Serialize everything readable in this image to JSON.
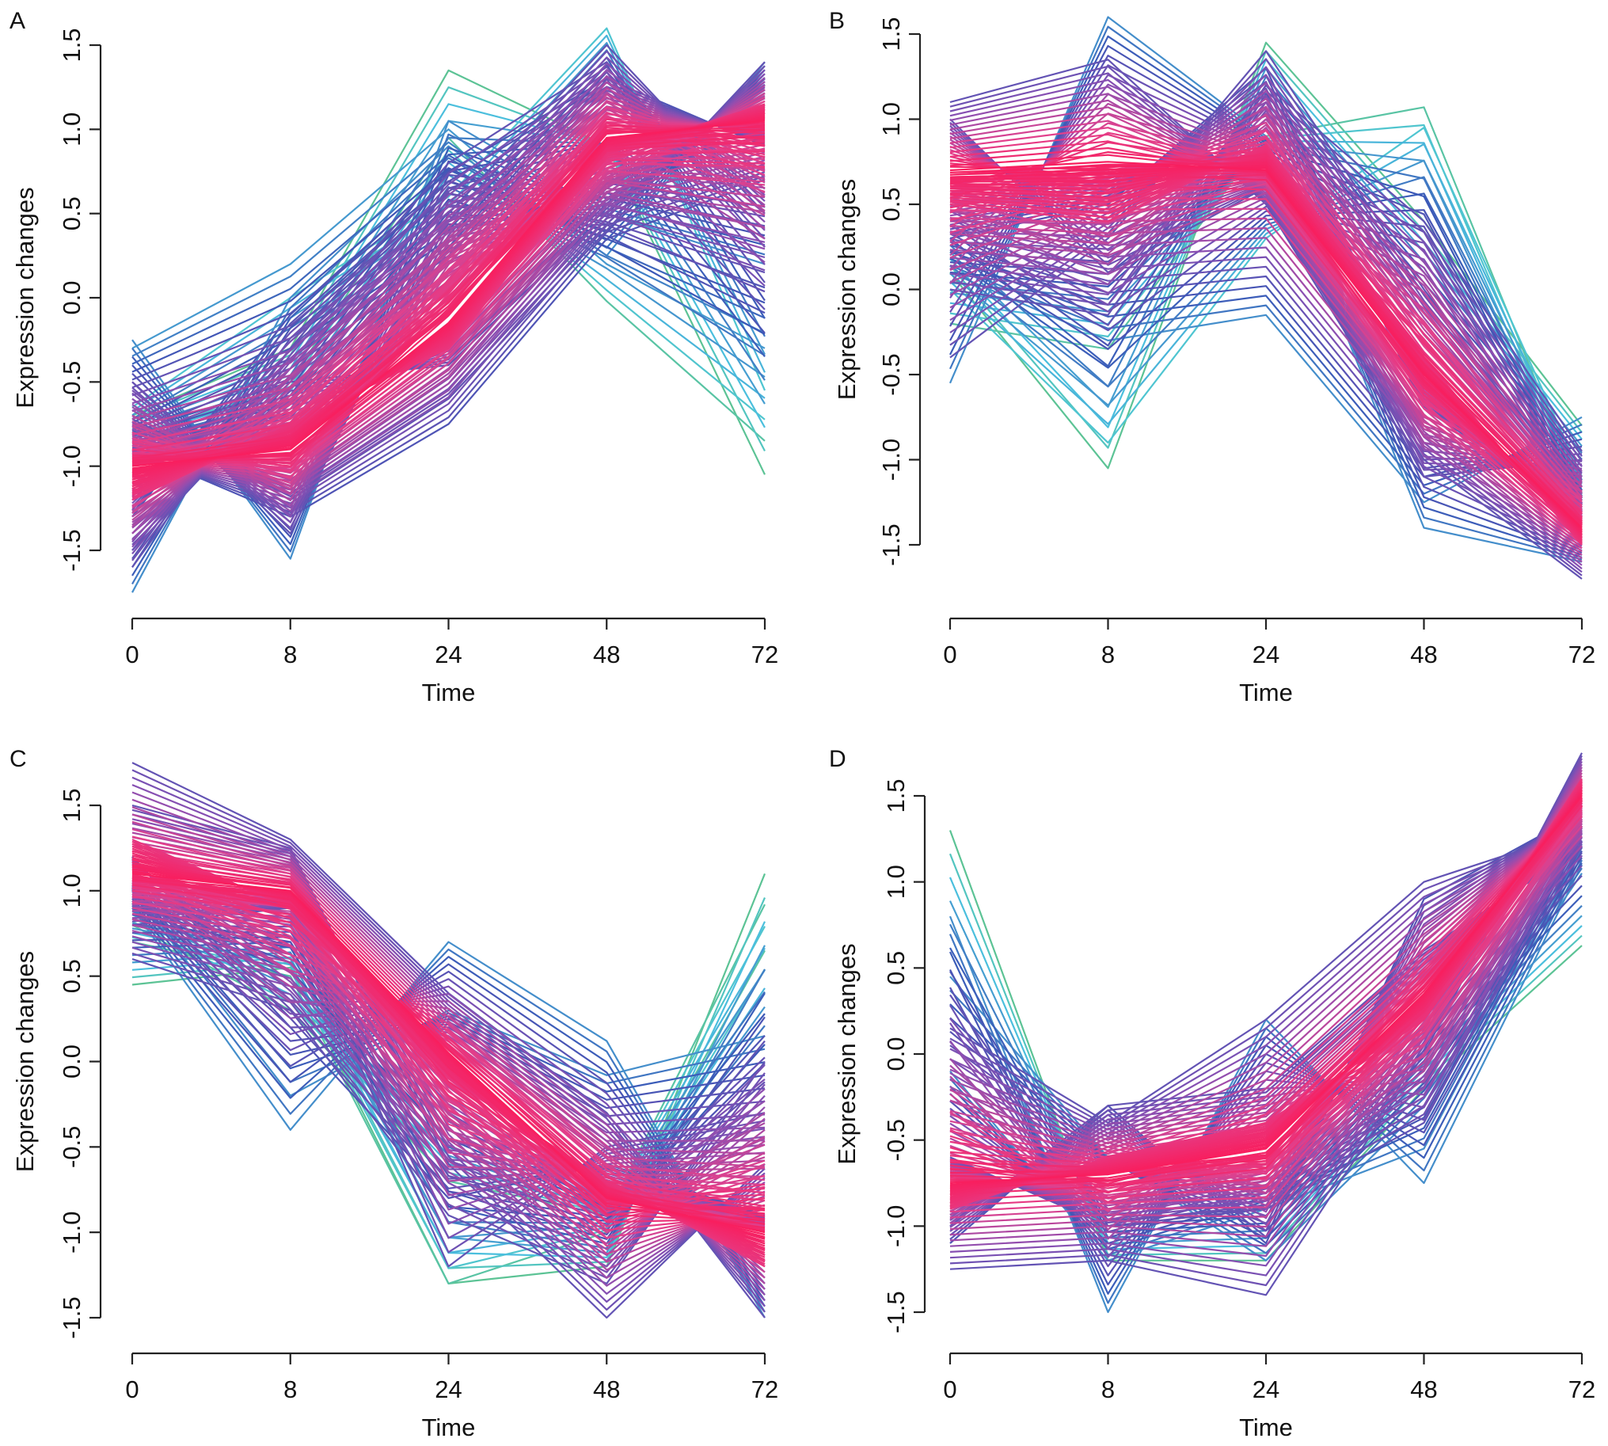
{
  "chart_data": [
    {
      "panel_label": "A",
      "type": "line",
      "xlabel": "Time",
      "ylabel": "Expression changes",
      "x_ticks": [
        "0",
        "8",
        "24",
        "48",
        "72"
      ],
      "y_ticks": [
        "-1.5",
        "-1.0",
        "-0.5",
        "0.0",
        "0.5",
        "1.0",
        "1.5"
      ],
      "ylim": [
        -1.5,
        1.5
      ],
      "x_spacing": "categorical-equal",
      "grid": false,
      "series": [
        {
          "membership": 0.95,
          "values": [
            -1.0,
            -0.9,
            -0.15,
            0.95,
            1.05
          ]
        },
        {
          "membership": 0.85,
          "values": [
            -1.2,
            -0.75,
            -0.3,
            0.85,
            1.15
          ]
        },
        {
          "membership": 0.5,
          "values": [
            -0.5,
            -1.4,
            0.5,
            1.5,
            0.5
          ]
        },
        {
          "membership": 0.5,
          "values": [
            -1.6,
            -0.3,
            0.8,
            1.4,
            0.3
          ]
        },
        {
          "membership": 0.5,
          "values": [
            -0.7,
            -1.2,
            -0.6,
            0.4,
            1.4
          ]
        },
        {
          "membership": 0.5,
          "values": [
            -1.5,
            -0.5,
            -0.4,
            0.5,
            1.3
          ]
        },
        {
          "membership": 0.45,
          "values": [
            -1.3,
            -0.1,
            0.75,
            1.3,
            0.9
          ]
        },
        {
          "membership": 0.45,
          "values": [
            -0.9,
            -1.3,
            -0.75,
            0.35,
            0.7
          ]
        },
        {
          "membership": 0.3,
          "values": [
            -0.25,
            -1.55,
            1.05,
            0.5,
            0.2
          ]
        },
        {
          "membership": 0.3,
          "values": [
            -1.75,
            0.0,
            0.9,
            0.25,
            1.4
          ]
        },
        {
          "membership": 0.28,
          "values": [
            -0.3,
            0.2,
            1.0,
            0.2,
            -0.3
          ]
        },
        {
          "membership": 0.18,
          "values": [
            -0.65,
            0.0,
            0.6,
            1.6,
            -0.55
          ]
        },
        {
          "membership": 0.1,
          "values": [
            -0.7,
            -0.3,
            1.35,
            0.9,
            -1.05
          ]
        },
        {
          "membership": 0.12,
          "values": [
            -0.8,
            -0.5,
            0.95,
            -0.02,
            -0.85
          ]
        }
      ]
    },
    {
      "panel_label": "B",
      "type": "line",
      "xlabel": "Time",
      "ylabel": "Expression changes",
      "x_ticks": [
        "0",
        "8",
        "24",
        "48",
        "72"
      ],
      "y_ticks": [
        "-1.5",
        "-1.0",
        "-0.5",
        "0.0",
        "0.5",
        "1.0",
        "1.5"
      ],
      "ylim": [
        -1.5,
        1.5
      ],
      "x_spacing": "categorical-equal",
      "grid": false,
      "series": [
        {
          "membership": 0.95,
          "values": [
            0.7,
            0.75,
            0.7,
            -0.5,
            -1.4
          ]
        },
        {
          "membership": 0.85,
          "values": [
            0.5,
            0.4,
            0.85,
            -0.4,
            -1.5
          ]
        },
        {
          "membership": 0.5,
          "values": [
            1.1,
            1.35,
            0.5,
            -1.0,
            -1.7
          ]
        },
        {
          "membership": 0.5,
          "values": [
            -0.4,
            0.3,
            1.4,
            0.0,
            -1.2
          ]
        },
        {
          "membership": 0.5,
          "values": [
            0.0,
            -0.15,
            1.2,
            0.4,
            -0.95
          ]
        },
        {
          "membership": 0.5,
          "values": [
            1.0,
            0.1,
            0.6,
            -1.1,
            -1.0
          ]
        },
        {
          "membership": 0.45,
          "values": [
            0.3,
            0.5,
            1.3,
            -0.7,
            -1.3
          ]
        },
        {
          "membership": 0.3,
          "values": [
            -0.55,
            1.6,
            0.9,
            -1.4,
            -1.6
          ]
        },
        {
          "membership": 0.3,
          "values": [
            0.1,
            -0.3,
            -0.15,
            -1.25,
            -0.75
          ]
        },
        {
          "membership": 0.18,
          "values": [
            0.0,
            -0.9,
            0.3,
            0.95,
            -1.1
          ]
        },
        {
          "membership": 0.1,
          "values": [
            0.1,
            -1.05,
            1.45,
            0.4,
            -0.8
          ]
        },
        {
          "membership": 0.12,
          "values": [
            -0.2,
            -0.35,
            0.9,
            1.07,
            -1.2
          ]
        }
      ]
    },
    {
      "panel_label": "C",
      "type": "line",
      "xlabel": "Time",
      "ylabel": "Expression changes",
      "x_ticks": [
        "0",
        "8",
        "24",
        "48",
        "72"
      ],
      "y_ticks": [
        "-1.5",
        "-1.0",
        "-0.5",
        "0.0",
        "0.5",
        "1.0",
        "1.5"
      ],
      "ylim": [
        -1.5,
        1.5
      ],
      "x_spacing": "categorical-equal",
      "grid": false,
      "series": [
        {
          "membership": 0.95,
          "values": [
            1.1,
            1.0,
            0.05,
            -0.8,
            -1.0
          ]
        },
        {
          "membership": 0.85,
          "values": [
            1.3,
            0.9,
            -0.1,
            -0.7,
            -1.2
          ]
        },
        {
          "membership": 0.5,
          "values": [
            1.75,
            1.3,
            0.4,
            -0.3,
            -1.5
          ]
        },
        {
          "membership": 0.5,
          "values": [
            0.6,
            0.3,
            -0.9,
            -1.3,
            0.0
          ]
        },
        {
          "membership": 0.5,
          "values": [
            0.8,
            0.9,
            -1.2,
            -0.5,
            -0.3
          ]
        },
        {
          "membership": 0.5,
          "values": [
            1.5,
            1.25,
            -0.6,
            -1.5,
            -0.6
          ]
        },
        {
          "membership": 0.45,
          "values": [
            1.2,
            0.2,
            -0.8,
            -0.6,
            -0.9
          ]
        },
        {
          "membership": 0.3,
          "values": [
            0.9,
            -0.4,
            0.7,
            0.12,
            -1.5
          ]
        },
        {
          "membership": 0.3,
          "values": [
            1.0,
            -0.2,
            0.3,
            -0.08,
            0.15
          ]
        },
        {
          "membership": 0.1,
          "values": [
            0.45,
            0.55,
            -1.3,
            -1.2,
            1.1
          ]
        },
        {
          "membership": 0.12,
          "values": [
            0.7,
            0.5,
            -1.3,
            -1.0,
            0.65
          ]
        },
        {
          "membership": 0.12,
          "values": [
            0.8,
            0.3,
            -0.7,
            -0.9,
            0.92
          ]
        }
      ]
    },
    {
      "panel_label": "D",
      "type": "line",
      "xlabel": "Time",
      "ylabel": "Expression changes",
      "x_ticks": [
        "0",
        "8",
        "24",
        "48",
        "72"
      ],
      "y_ticks": [
        "-1.5",
        "-1.0",
        "-0.5",
        "0.0",
        "0.5",
        "1.0",
        "1.5"
      ],
      "ylim": [
        -1.5,
        1.5
      ],
      "x_spacing": "categorical-equal",
      "grid": false,
      "series": [
        {
          "membership": 0.95,
          "values": [
            -0.75,
            -0.7,
            -0.55,
            0.35,
            1.5
          ]
        },
        {
          "membership": 0.85,
          "values": [
            -0.9,
            -0.6,
            -0.4,
            0.2,
            1.6
          ]
        },
        {
          "membership": 0.5,
          "values": [
            -1.25,
            -1.2,
            -1.4,
            0.0,
            1.75
          ]
        },
        {
          "membership": 0.5,
          "values": [
            0.15,
            -0.4,
            0.2,
            1.0,
            1.3
          ]
        },
        {
          "membership": 0.5,
          "values": [
            -1.0,
            -0.3,
            -0.2,
            0.6,
            1.2
          ]
        },
        {
          "membership": 0.5,
          "values": [
            -0.6,
            -1.0,
            -0.9,
            -0.4,
            1.3
          ]
        },
        {
          "membership": 0.45,
          "values": [
            -1.1,
            -0.3,
            -1.1,
            0.9,
            1.4
          ]
        },
        {
          "membership": 0.3,
          "values": [
            0.8,
            -1.5,
            0.2,
            -0.75,
            1.1
          ]
        },
        {
          "membership": 0.3,
          "values": [
            0.45,
            -0.6,
            -1.2,
            -0.3,
            1.05
          ]
        },
        {
          "membership": 0.3,
          "values": [
            -0.1,
            -1.2,
            -0.9,
            -0.55,
            1.2
          ]
        },
        {
          "membership": 0.1,
          "values": [
            1.3,
            -1.2,
            -1.2,
            -0.2,
            0.63
          ]
        }
      ]
    }
  ],
  "membership_colors": [
    "#6cc04a",
    "#4cc6e0",
    "#3b56b6",
    "#8a4fb2",
    "#e2408c",
    "#ff1450"
  ]
}
